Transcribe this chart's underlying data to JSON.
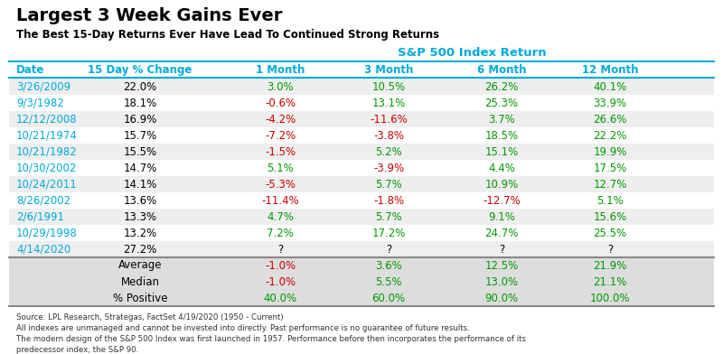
{
  "title": "Largest 3 Week Gains Ever",
  "subtitle": "The Best 15-Day Returns Ever Have Lead To Continued Strong Returns",
  "sp500_label": "S&P 500 Index Return",
  "col_headers": [
    "Date",
    "15 Day % Change",
    "1 Month",
    "3 Month",
    "6 Month",
    "12 Month"
  ],
  "rows": [
    [
      "3/26/2009",
      "22.0%",
      "3.0%",
      "10.5%",
      "26.2%",
      "40.1%"
    ],
    [
      "9/3/1982",
      "18.1%",
      "-0.6%",
      "13.1%",
      "25.3%",
      "33.9%"
    ],
    [
      "12/12/2008",
      "16.9%",
      "-4.2%",
      "-11.6%",
      "3.7%",
      "26.6%"
    ],
    [
      "10/21/1974",
      "15.7%",
      "-7.2%",
      "-3.8%",
      "18.5%",
      "22.2%"
    ],
    [
      "10/21/1982",
      "15.5%",
      "-1.5%",
      "5.2%",
      "15.1%",
      "19.9%"
    ],
    [
      "10/30/2002",
      "14.7%",
      "5.1%",
      "-3.9%",
      "4.4%",
      "17.5%"
    ],
    [
      "10/24/2011",
      "14.1%",
      "-5.3%",
      "5.7%",
      "10.9%",
      "12.7%"
    ],
    [
      "8/26/2002",
      "13.6%",
      "-11.4%",
      "-1.8%",
      "-12.7%",
      "5.1%"
    ],
    [
      "2/6/1991",
      "13.3%",
      "4.7%",
      "5.7%",
      "9.1%",
      "15.6%"
    ],
    [
      "10/29/1998",
      "13.2%",
      "7.2%",
      "17.2%",
      "24.7%",
      "25.5%"
    ],
    [
      "4/14/2020",
      "27.2%",
      "?",
      "?",
      "?",
      "?"
    ]
  ],
  "summary_rows": [
    [
      "",
      "Average",
      "-1.0%",
      "3.6%",
      "12.5%",
      "21.9%"
    ],
    [
      "",
      "Median",
      "-1.0%",
      "5.5%",
      "13.0%",
      "21.1%"
    ],
    [
      "",
      "% Positive",
      "40.0%",
      "60.0%",
      "90.0%",
      "100.0%"
    ]
  ],
  "footer_lines": [
    "Source: LPL Research, Strategas, FactSet 4/19/2020 (1950 - Current)",
    "All indexes are unmanaged and cannot be invested into directly. Past performance is no guarantee of future results.",
    "The modern design of the S&P 500 Index was first launched in 1957. Performance before then incorporates the performance of its",
    "predecessor index, the S&P 90."
  ],
  "colors": {
    "title": "#000000",
    "subtitle": "#000000",
    "sp500_label": "#00aadd",
    "header": "#00aadd",
    "date_col": "#00aadd",
    "pct_change_col": "#000000",
    "positive": "#009900",
    "negative": "#cc0000",
    "neutral": "#000000",
    "summary_label": "#000000",
    "row_bg_white": "#ffffff",
    "row_bg_gray": "#eeeeee",
    "summary_bg": "#dddddd",
    "footer": "#333333",
    "header_line": "#00aadd",
    "sep_line": "#888888"
  }
}
